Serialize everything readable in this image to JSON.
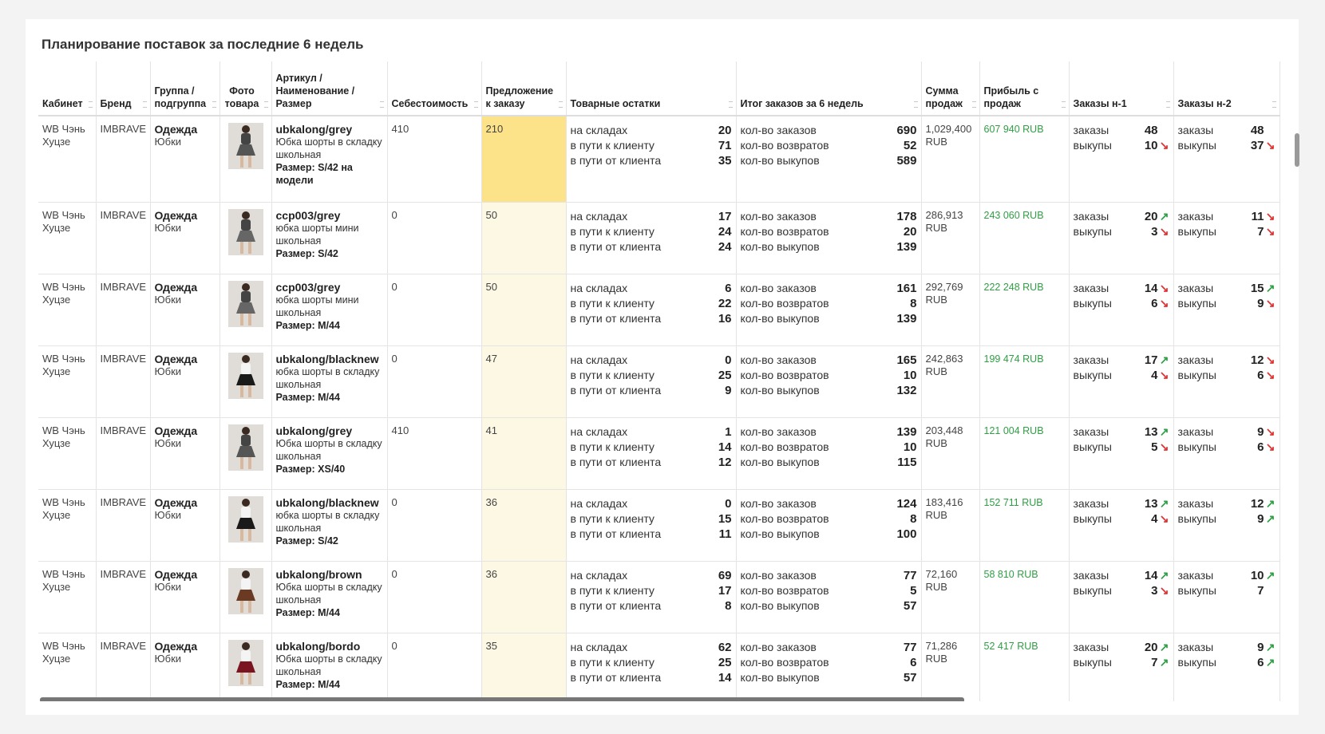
{
  "header": {
    "title": "Планирование поставок за последние 6 недель"
  },
  "table": {
    "columns": [
      "Кабинет",
      "Бренд",
      "Группа / подгруппа",
      "Фото товара",
      "Артикул / Наименование / Размер",
      "Себестоимость",
      "Предложение к заказу",
      "Товарные остатки",
      "Итог заказов за 6 недель",
      "Сумма продаж",
      "Прибыль с продаж",
      "Заказы н-1",
      "Заказы н-2"
    ],
    "stock_labels": [
      "на складах",
      "в пути к клиенту",
      "в пути от клиента"
    ],
    "order_labels": [
      "кол-во заказов",
      "кол-во возвратов",
      "кол-во выкупов"
    ],
    "week_labels": [
      "заказы",
      "выкупы"
    ],
    "arrow_colors": {
      "↗": "#2f9e44",
      "↘": "#e03131"
    },
    "rows": [
      {
        "cabinet": "WB Чэнь Хуцзе",
        "brand": "IMBRAVE",
        "group": "Одежда",
        "subgroup": "Юбки",
        "photo_color": "#555555",
        "article": "ubkalong/grey",
        "name": "Юбка шорты в складку школьная",
        "size": "Размер: S/42 на модели",
        "cost": 410,
        "proposal": 210,
        "stock": [
          20,
          71,
          35
        ],
        "orders": [
          690,
          52,
          589
        ],
        "sales": "1,029,400 RUB",
        "profit": "607 940 RUB",
        "w1": [
          {
            "value": 48
          },
          {
            "value": 10,
            "arrow": "↘"
          }
        ],
        "w2": [
          {
            "value": 48
          },
          {
            "value": 37,
            "arrow": "↘"
          }
        ]
      },
      {
        "cabinet": "WB Чэнь Хуцзе",
        "brand": "IMBRAVE",
        "group": "Одежда",
        "subgroup": "Юбки",
        "photo_color": "#666666",
        "article": "ccp003/grey",
        "name": "юбка шорты мини школьная",
        "size": "Размер: S/42",
        "cost": 0,
        "proposal": 50,
        "stock": [
          17,
          24,
          24
        ],
        "orders": [
          178,
          20,
          139
        ],
        "sales": "286,913 RUB",
        "profit": "243 060 RUB",
        "w1": [
          {
            "value": 20,
            "arrow": "↗"
          },
          {
            "value": 3,
            "arrow": "↘"
          }
        ],
        "w2": [
          {
            "value": 11,
            "arrow": "↘"
          },
          {
            "value": 7,
            "arrow": "↘"
          }
        ]
      },
      {
        "cabinet": "WB Чэнь Хуцзе",
        "brand": "IMBRAVE",
        "group": "Одежда",
        "subgroup": "Юбки",
        "photo_color": "#666666",
        "article": "ccp003/grey",
        "name": "юбка шорты мини школьная",
        "size": "Размер: M/44",
        "cost": 0,
        "proposal": 50,
        "stock": [
          6,
          22,
          16
        ],
        "orders": [
          161,
          8,
          139
        ],
        "sales": "292,769 RUB",
        "profit": "222 248 RUB",
        "w1": [
          {
            "value": 14,
            "arrow": "↘"
          },
          {
            "value": 6,
            "arrow": "↘"
          }
        ],
        "w2": [
          {
            "value": 15,
            "arrow": "↗"
          },
          {
            "value": 9,
            "arrow": "↘"
          }
        ]
      },
      {
        "cabinet": "WB Чэнь Хуцзе",
        "brand": "IMBRAVE",
        "group": "Одежда",
        "subgroup": "Юбки",
        "photo_color": "#1a1a1a",
        "article": "ubkalong/blacknew",
        "name": "юбка шорты в складку школьная",
        "size": "Размер: M/44",
        "cost": 0,
        "proposal": 47,
        "stock": [
          0,
          25,
          9
        ],
        "orders": [
          165,
          10,
          132
        ],
        "sales": "242,863 RUB",
        "profit": "199 474 RUB",
        "w1": [
          {
            "value": 17,
            "arrow": "↗"
          },
          {
            "value": 4,
            "arrow": "↘"
          }
        ],
        "w2": [
          {
            "value": 12,
            "arrow": "↘"
          },
          {
            "value": 6,
            "arrow": "↘"
          }
        ]
      },
      {
        "cabinet": "WB Чэнь Хуцзе",
        "brand": "IMBRAVE",
        "group": "Одежда",
        "subgroup": "Юбки",
        "photo_color": "#555555",
        "article": "ubkalong/grey",
        "name": "Юбка шорты в складку школьная",
        "size": "Размер: XS/40",
        "cost": 410,
        "proposal": 41,
        "stock": [
          1,
          14,
          12
        ],
        "orders": [
          139,
          10,
          115
        ],
        "sales": "203,448 RUB",
        "profit": "121 004 RUB",
        "w1": [
          {
            "value": 13,
            "arrow": "↗"
          },
          {
            "value": 5,
            "arrow": "↘"
          }
        ],
        "w2": [
          {
            "value": 9,
            "arrow": "↘"
          },
          {
            "value": 6,
            "arrow": "↘"
          }
        ]
      },
      {
        "cabinet": "WB Чэнь Хуцзе",
        "brand": "IMBRAVE",
        "group": "Одежда",
        "subgroup": "Юбки",
        "photo_color": "#1a1a1a",
        "article": "ubkalong/blacknew",
        "name": "юбка шорты в складку школьная",
        "size": "Размер: S/42",
        "cost": 0,
        "proposal": 36,
        "stock": [
          0,
          15,
          11
        ],
        "orders": [
          124,
          8,
          100
        ],
        "sales": "183,416 RUB",
        "profit": "152 711 RUB",
        "w1": [
          {
            "value": 13,
            "arrow": "↗"
          },
          {
            "value": 4,
            "arrow": "↘"
          }
        ],
        "w2": [
          {
            "value": 12,
            "arrow": "↗"
          },
          {
            "value": 9,
            "arrow": "↗"
          }
        ]
      },
      {
        "cabinet": "WB Чэнь Хуцзе",
        "brand": "IMBRAVE",
        "group": "Одежда",
        "subgroup": "Юбки",
        "photo_color": "#6b3a22",
        "article": "ubkalong/brown",
        "name": "Юбка шорты в складку школьная",
        "size": "Размер: M/44",
        "cost": 0,
        "proposal": 36,
        "stock": [
          69,
          17,
          8
        ],
        "orders": [
          77,
          5,
          57
        ],
        "sales": "72,160 RUB",
        "profit": "58 810 RUB",
        "w1": [
          {
            "value": 14,
            "arrow": "↗"
          },
          {
            "value": 3,
            "arrow": "↘"
          }
        ],
        "w2": [
          {
            "value": 10,
            "arrow": "↗"
          },
          {
            "value": 7
          }
        ]
      },
      {
        "cabinet": "WB Чэнь Хуцзе",
        "brand": "IMBRAVE",
        "group": "Одежда",
        "subgroup": "Юбки",
        "photo_color": "#7a1420",
        "article": "ubkalong/bordo",
        "name": "Юбка шорты в складку школьная",
        "size": "Размер: M/44",
        "cost": 0,
        "proposal": 35,
        "stock": [
          62,
          25,
          14
        ],
        "orders": [
          77,
          6,
          57
        ],
        "sales": "71,286 RUB",
        "profit": "52 417 RUB",
        "w1": [
          {
            "value": 20,
            "arrow": "↗"
          },
          {
            "value": 7,
            "arrow": "↗"
          }
        ],
        "w2": [
          {
            "value": 9,
            "arrow": "↗"
          },
          {
            "value": 6,
            "arrow": "↗"
          }
        ]
      }
    ]
  }
}
